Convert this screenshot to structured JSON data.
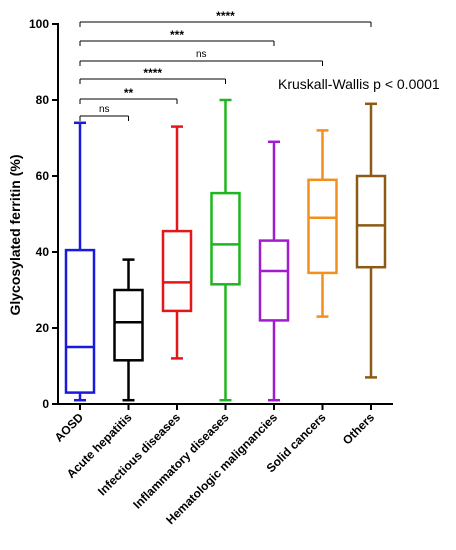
{
  "chart_data": {
    "type": "boxplot",
    "ylabel": "Glycosylated ferritin (%)",
    "ylim": [
      0,
      100
    ],
    "yticks": [
      0,
      20,
      40,
      60,
      80,
      100
    ],
    "categories": [
      "AOSD",
      "Acute hepatitis",
      "Infectious diseases",
      "Inflammatory diseases",
      "Hematologic malignancies",
      "Solid cancers",
      "Others"
    ],
    "boxes": [
      {
        "category": "AOSD",
        "min": 1,
        "q1": 3,
        "median": 15,
        "q3": 40.5,
        "max": 74,
        "color": "#1a1adb"
      },
      {
        "category": "Acute hepatitis",
        "min": 1,
        "q1": 11.5,
        "median": 21.5,
        "q3": 30,
        "max": 38,
        "color": "#000000"
      },
      {
        "category": "Infectious diseases",
        "min": 12,
        "q1": 24.5,
        "median": 32,
        "q3": 45.5,
        "max": 73,
        "color": "#e3161a"
      },
      {
        "category": "Inflammatory diseases",
        "min": 1,
        "q1": 31.5,
        "median": 42,
        "q3": 55.5,
        "max": 80,
        "color": "#1fb51f"
      },
      {
        "category": "Hematologic malignancies",
        "min": 1,
        "q1": 22,
        "median": 35,
        "q3": 43,
        "max": 69,
        "color": "#a11ccf"
      },
      {
        "category": "Solid cancers",
        "min": 23,
        "q1": 34.5,
        "median": 49,
        "q3": 59,
        "max": 72,
        "color": "#f2901e"
      },
      {
        "category": "Others",
        "min": 7,
        "q1": 36,
        "median": 47,
        "q3": 60,
        "max": 79,
        "color": "#8c5a14"
      }
    ],
    "comparisons": [
      {
        "from": "AOSD",
        "to": "Acute hepatitis",
        "label": "ns"
      },
      {
        "from": "AOSD",
        "to": "Infectious diseases",
        "label": "**"
      },
      {
        "from": "AOSD",
        "to": "Inflammatory diseases",
        "label": "****"
      },
      {
        "from": "AOSD",
        "to": "Solid cancers",
        "label": "ns"
      },
      {
        "from": "AOSD",
        "to": "Hematologic malignancies",
        "label": "***"
      },
      {
        "from": "AOSD",
        "to": "Others",
        "label": "****"
      }
    ],
    "annotation": "Kruskall-Wallis p < 0.0001"
  }
}
